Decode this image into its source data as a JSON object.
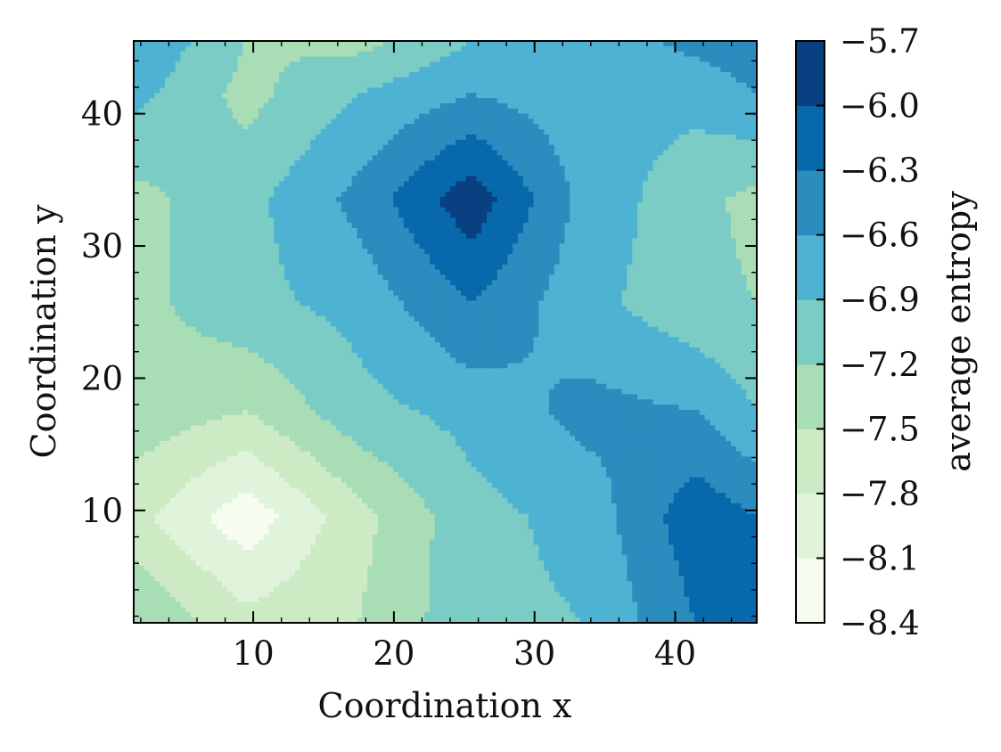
{
  "chart_data": {
    "type": "heatmap",
    "subtype": "filled-contour",
    "xlabel": "Coordination x",
    "ylabel": "Coordination y",
    "xlim": [
      1.5,
      45.8
    ],
    "ylim": [
      1.5,
      45.5
    ],
    "x_ticks": [
      10,
      20,
      30,
      40
    ],
    "y_ticks": [
      10,
      20,
      30,
      40
    ],
    "x_tick_labels": [
      "10",
      "20",
      "30",
      "40"
    ],
    "y_tick_labels": [
      "10",
      "20",
      "30",
      "40"
    ],
    "colorbar": {
      "label": "average entropy",
      "levels": [
        -8.4,
        -8.1,
        -7.8,
        -7.5,
        -7.2,
        -6.9,
        -6.6,
        -6.3,
        -6.0,
        -5.7
      ],
      "tick_labels": [
        "−8.4",
        "−8.1",
        "−7.8",
        "−7.5",
        "−7.2",
        "−6.9",
        "−6.6",
        "−6.3",
        "−6.0",
        "−5.7"
      ],
      "colors": [
        "#f7fcf0",
        "#e0f3db",
        "#ccebc5",
        "#a8ddb5",
        "#7bccc4",
        "#4eb3d3",
        "#2b8cbe",
        "#0868ac",
        "#084081"
      ]
    },
    "grid_x": [
      1.5,
      9.5,
      17.5,
      25.5,
      33.5,
      41.5,
      45.8
    ],
    "grid_y": [
      1.5,
      9.5,
      17.5,
      25.5,
      33.5,
      41.5,
      45.5
    ],
    "z": [
      [
        -7.2,
        -7.7,
        -7.5,
        -7.0,
        -6.9,
        -6.3,
        -6.3
      ],
      [
        -7.7,
        -8.3,
        -7.6,
        -7.0,
        -6.8,
        -6.1,
        -6.3
      ],
      [
        -7.3,
        -7.5,
        -7.0,
        -6.8,
        -6.5,
        -6.6,
        -6.9
      ],
      [
        -7.3,
        -7.0,
        -6.8,
        -6.3,
        -6.8,
        -7.1,
        -7.2
      ],
      [
        -7.3,
        -7.0,
        -6.5,
        -5.8,
        -6.7,
        -7.1,
        -7.3
      ],
      [
        -6.8,
        -7.3,
        -6.9,
        -6.6,
        -6.8,
        -6.8,
        -6.6
      ],
      [
        -6.6,
        -7.2,
        -7.3,
        -6.9,
        -6.8,
        -6.5,
        -6.4
      ]
    ]
  }
}
